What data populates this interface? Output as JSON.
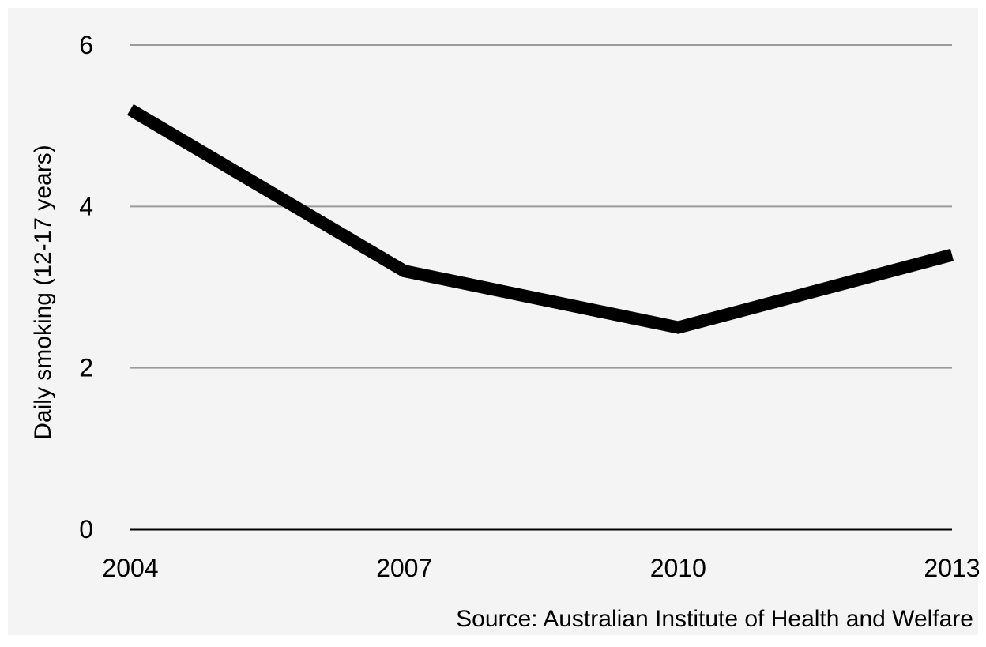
{
  "chart_data": {
    "type": "line",
    "title": "",
    "xlabel": "",
    "ylabel": "Daily smoking (12-17 years)",
    "source": "Source: Australian Institute of Health and Welfare",
    "x": [
      2004,
      2007,
      2010,
      2013
    ],
    "x_tick_labels": [
      "2004",
      "2007",
      "2010",
      "2013"
    ],
    "series": [
      {
        "values": [
          5.2,
          3.2,
          2.5,
          3.4
        ]
      }
    ],
    "ylim": [
      0,
      6
    ],
    "xlim": [
      2004,
      2013
    ],
    "y_ticks": [
      0,
      2,
      4,
      6
    ],
    "y_tick_labels": [
      "0",
      "2",
      "4",
      "6"
    ],
    "grid": true,
    "legend": "none",
    "colors": {
      "background": "#f4f4f4",
      "gridline": "#9a9a9a",
      "baseline": "#000000",
      "series_line": "#000000",
      "text": "#000000"
    }
  }
}
